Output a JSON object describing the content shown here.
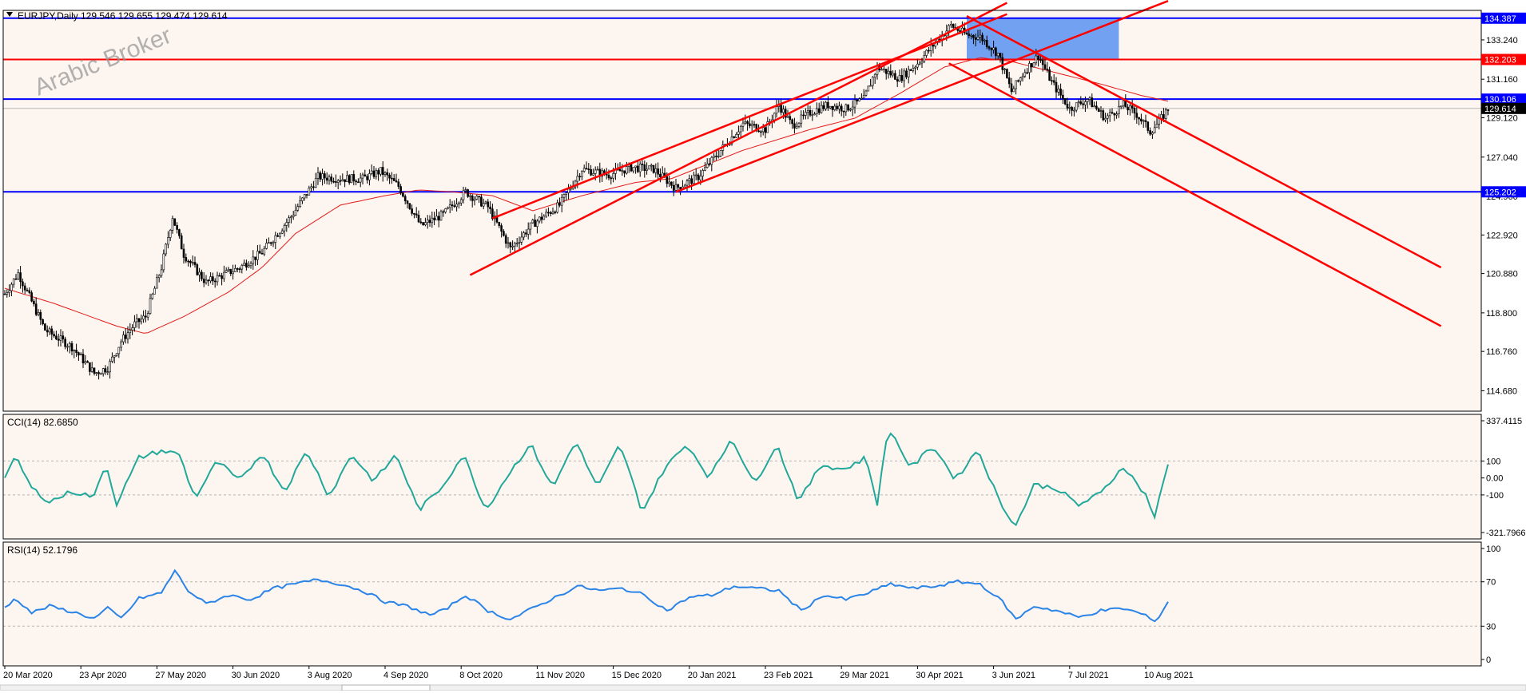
{
  "colors": {
    "background": "#fdf5ef",
    "candle": "#000000",
    "ma": "#e21b1b",
    "channel": "#ff0000",
    "support_line": "#0000ff",
    "resistance_line": "#ff0000",
    "zone": "#6b9cf0",
    "cci": "#21a89a",
    "rsi": "#2a84e8",
    "watermark": "#9a9a9a"
  },
  "header": {
    "symbol": "EURJPY,Daily",
    "ohlc": "129.546 129.655 129.474 129.614",
    "menu_icon": "triangle-down-icon"
  },
  "watermark": "Arabic Broker",
  "chart_data": [
    {
      "type": "candlestick",
      "symbol": "EURJPY",
      "timeframe": "Daily",
      "ylim": [
        113.6,
        134.8
      ],
      "y_ticks": [
        "133.240",
        "131.160",
        "129.120",
        "127.040",
        "124.960",
        "122.920",
        "120.880",
        "118.800",
        "116.760",
        "114.680"
      ],
      "x_ticks": [
        "20 Mar 2020",
        "23 Apr 2020",
        "27 May 2020",
        "30 Jun 2020",
        "3 Aug 2020",
        "4 Sep 2020",
        "8 Oct 2020",
        "11 Nov 2020",
        "15 Dec 2020",
        "20 Jan 2021",
        "23 Feb 2021",
        "29 Mar 2021",
        "30 Apr 2021",
        "3 Jun 2021",
        "7 Jul 2021",
        "10 Aug 2021"
      ],
      "close_path": [
        [
          0,
          119.8
        ],
        [
          6,
          120.9
        ],
        [
          18,
          117.9
        ],
        [
          30,
          117.0
        ],
        [
          40,
          115.6
        ],
        [
          46,
          115.9
        ],
        [
          52,
          117.3
        ],
        [
          58,
          118.2
        ],
        [
          63,
          118.6
        ],
        [
          70,
          121.2
        ],
        [
          75,
          123.9
        ],
        [
          80,
          121.9
        ],
        [
          90,
          120.4
        ],
        [
          105,
          121.2
        ],
        [
          115,
          122.0
        ],
        [
          128,
          123.9
        ],
        [
          140,
          126.0
        ],
        [
          150,
          125.9
        ],
        [
          160,
          125.9
        ],
        [
          168,
          126.3
        ],
        [
          176,
          125.5
        ],
        [
          186,
          123.4
        ],
        [
          196,
          124.0
        ],
        [
          206,
          125.2
        ],
        [
          216,
          124.4
        ],
        [
          226,
          122.2
        ],
        [
          236,
          123.5
        ],
        [
          242,
          124.0
        ],
        [
          248,
          124.5
        ],
        [
          258,
          126.4
        ],
        [
          270,
          126.1
        ],
        [
          280,
          126.5
        ],
        [
          290,
          126.4
        ],
        [
          300,
          125.4
        ],
        [
          310,
          126.0
        ],
        [
          320,
          127.4
        ],
        [
          330,
          128.8
        ],
        [
          340,
          128.5
        ],
        [
          346,
          129.8
        ],
        [
          352,
          128.7
        ],
        [
          360,
          129.4
        ],
        [
          368,
          129.8
        ],
        [
          376,
          129.6
        ],
        [
          384,
          130.1
        ],
        [
          390,
          131.8
        ],
        [
          400,
          131.2
        ],
        [
          408,
          132.0
        ],
        [
          416,
          133.1
        ],
        [
          423,
          134.0
        ],
        [
          430,
          133.5
        ],
        [
          436,
          133.4
        ],
        [
          444,
          132.5
        ],
        [
          450,
          130.5
        ],
        [
          456,
          131.6
        ],
        [
          462,
          132.4
        ],
        [
          468,
          131.0
        ],
        [
          476,
          129.6
        ],
        [
          484,
          130.1
        ],
        [
          492,
          129.1
        ],
        [
          500,
          129.8
        ],
        [
          506,
          129.3
        ],
        [
          512,
          128.4
        ],
        [
          516,
          128.9
        ],
        [
          520,
          129.6
        ]
      ],
      "moving_average": [
        [
          0,
          120.1
        ],
        [
          22,
          119.3
        ],
        [
          50,
          118.1
        ],
        [
          63,
          117.7
        ],
        [
          80,
          118.6
        ],
        [
          100,
          119.9
        ],
        [
          115,
          121.2
        ],
        [
          130,
          123.0
        ],
        [
          150,
          124.5
        ],
        [
          170,
          125.0
        ],
        [
          185,
          125.3
        ],
        [
          200,
          125.2
        ],
        [
          218,
          125.0
        ],
        [
          236,
          124.2
        ],
        [
          258,
          125.0
        ],
        [
          282,
          125.7
        ],
        [
          298,
          125.9
        ],
        [
          330,
          127.4
        ],
        [
          360,
          128.5
        ],
        [
          380,
          129.1
        ],
        [
          400,
          130.4
        ],
        [
          420,
          131.8
        ],
        [
          436,
          132.3
        ],
        [
          450,
          132.1
        ],
        [
          470,
          131.5
        ],
        [
          490,
          130.9
        ],
        [
          508,
          130.3
        ],
        [
          520,
          130.0
        ]
      ],
      "horizontal_levels": [
        {
          "price": 134.387,
          "label": "134.387",
          "color": "#0000ff"
        },
        {
          "price": 132.203,
          "label": "132.203",
          "color": "#ff0000"
        },
        {
          "price": 130.106,
          "label": "130.106",
          "color": "#0000ff"
        },
        {
          "price": 125.202,
          "label": "125.202",
          "color": "#0000ff"
        }
      ],
      "current_price": {
        "price": 129.614,
        "label": "129.614"
      },
      "zone": {
        "bar_start": 430,
        "bar_end": 498,
        "price_low": 132.203,
        "price_high": 134.387
      },
      "channel_lines": [
        {
          "from": [
            208,
            120.8
          ],
          "to": [
            448,
            135.2
          ]
        },
        {
          "from": [
            218,
            123.8
          ],
          "to": [
            448,
            134.6
          ]
        },
        {
          "from": [
            300,
            125.2
          ],
          "to": [
            520,
            135.3
          ]
        },
        {
          "from": [
            430,
            134.5
          ],
          "to": [
            642,
            121.2
          ]
        },
        {
          "from": [
            422,
            132.0
          ],
          "to": [
            642,
            118.1
          ]
        }
      ]
    },
    {
      "type": "line",
      "name": "CCI(14)",
      "title": "CCI(14) 82.6850",
      "ylim": [
        -321.7966,
        337.4115
      ],
      "y_ticks": [
        "337.4115",
        "100",
        "0.00",
        "-100",
        "-321.7966"
      ],
      "levels": [
        100,
        -100
      ],
      "values_path": [
        [
          0,
          10
        ],
        [
          5,
          120
        ],
        [
          12,
          -60
        ],
        [
          20,
          -140
        ],
        [
          30,
          -80
        ],
        [
          40,
          -110
        ],
        [
          45,
          90
        ],
        [
          50,
          -150
        ],
        [
          60,
          120
        ],
        [
          70,
          160
        ],
        [
          78,
          140
        ],
        [
          85,
          -120
        ],
        [
          95,
          100
        ],
        [
          105,
          -20
        ],
        [
          115,
          150
        ],
        [
          125,
          -80
        ],
        [
          135,
          160
        ],
        [
          145,
          -110
        ],
        [
          155,
          140
        ],
        [
          165,
          -20
        ],
        [
          175,
          140
        ],
        [
          185,
          -190
        ],
        [
          195,
          -60
        ],
        [
          205,
          140
        ],
        [
          215,
          -190
        ],
        [
          225,
          20
        ],
        [
          235,
          200
        ],
        [
          245,
          -60
        ],
        [
          255,
          220
        ],
        [
          265,
          -60
        ],
        [
          275,
          200
        ],
        [
          285,
          -200
        ],
        [
          295,
          60
        ],
        [
          305,
          200
        ],
        [
          315,
          0
        ],
        [
          325,
          240
        ],
        [
          335,
          -40
        ],
        [
          345,
          200
        ],
        [
          355,
          -140
        ],
        [
          365,
          80
        ],
        [
          375,
          50
        ],
        [
          385,
          120
        ],
        [
          390,
          -150
        ],
        [
          395,
          300
        ],
        [
          405,
          60
        ],
        [
          415,
          190
        ],
        [
          425,
          -10
        ],
        [
          435,
          170
        ],
        [
          445,
          -150
        ],
        [
          452,
          -280
        ],
        [
          460,
          -40
        ],
        [
          470,
          -60
        ],
        [
          480,
          -160
        ],
        [
          490,
          -90
        ],
        [
          500,
          70
        ],
        [
          510,
          -100
        ],
        [
          514,
          -230
        ],
        [
          520,
          80
        ]
      ]
    },
    {
      "type": "line",
      "name": "RSI(14)",
      "title": "RSI(14) 52.1796",
      "ylim": [
        0,
        100
      ],
      "y_ticks": [
        "100",
        "70",
        "30",
        "0"
      ],
      "levels": [
        70,
        30
      ],
      "values_path": [
        [
          0,
          47
        ],
        [
          5,
          55
        ],
        [
          12,
          42
        ],
        [
          20,
          48
        ],
        [
          30,
          43
        ],
        [
          40,
          37
        ],
        [
          46,
          46
        ],
        [
          52,
          37
        ],
        [
          60,
          55
        ],
        [
          70,
          60
        ],
        [
          76,
          80
        ],
        [
          82,
          62
        ],
        [
          90,
          50
        ],
        [
          100,
          58
        ],
        [
          110,
          54
        ],
        [
          120,
          64
        ],
        [
          130,
          68
        ],
        [
          140,
          72
        ],
        [
          150,
          68
        ],
        [
          160,
          62
        ],
        [
          170,
          52
        ],
        [
          180,
          48
        ],
        [
          190,
          40
        ],
        [
          196,
          44
        ],
        [
          206,
          58
        ],
        [
          216,
          44
        ],
        [
          226,
          36
        ],
        [
          236,
          46
        ],
        [
          246,
          56
        ],
        [
          256,
          66
        ],
        [
          266,
          62
        ],
        [
          276,
          64
        ],
        [
          286,
          58
        ],
        [
          296,
          44
        ],
        [
          306,
          56
        ],
        [
          316,
          58
        ],
        [
          326,
          66
        ],
        [
          336,
          64
        ],
        [
          346,
          62
        ],
        [
          356,
          44
        ],
        [
          366,
          58
        ],
        [
          376,
          54
        ],
        [
          386,
          60
        ],
        [
          396,
          68
        ],
        [
          406,
          64
        ],
        [
          416,
          66
        ],
        [
          426,
          70
        ],
        [
          436,
          68
        ],
        [
          446,
          52
        ],
        [
          452,
          36
        ],
        [
          460,
          48
        ],
        [
          470,
          44
        ],
        [
          480,
          38
        ],
        [
          490,
          44
        ],
        [
          500,
          46
        ],
        [
          510,
          40
        ],
        [
          514,
          33
        ],
        [
          520,
          52
        ]
      ]
    }
  ]
}
